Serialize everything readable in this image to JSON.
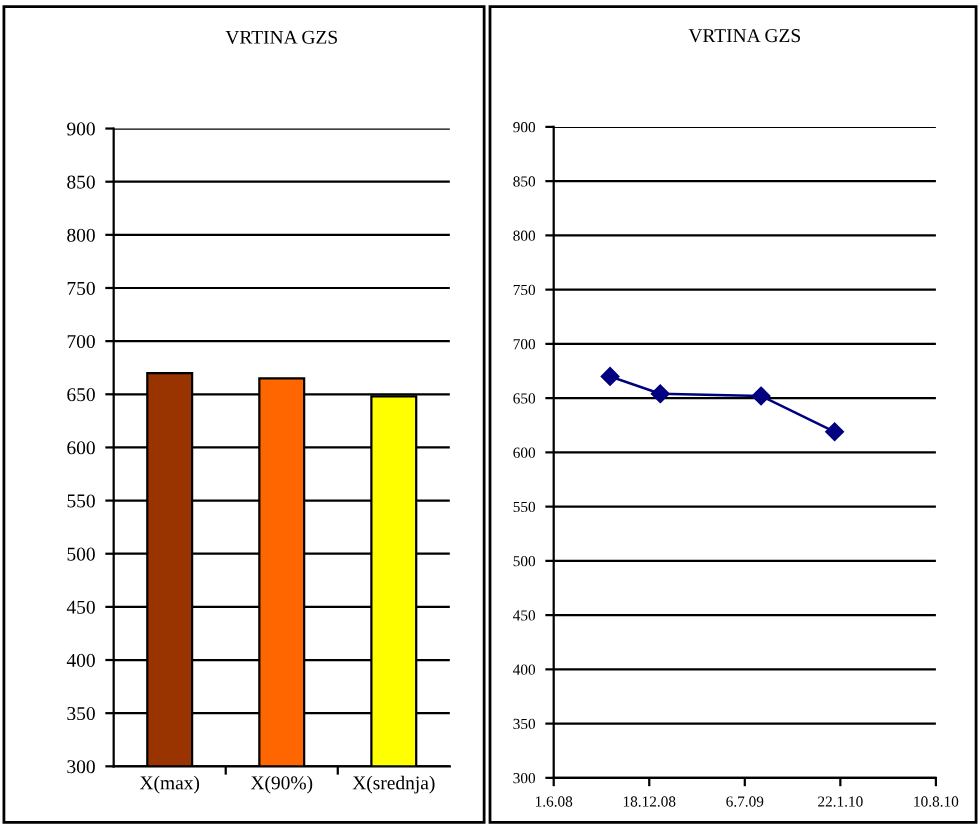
{
  "chart_data": [
    {
      "type": "bar",
      "title": "VRTINA GZS",
      "categories": [
        "X(max)",
        "X(90%)",
        "X(srednja)"
      ],
      "values": [
        670,
        665,
        648
      ],
      "colors": [
        "#993300",
        "#ff6600",
        "#ffff00"
      ],
      "ylim": [
        300,
        900
      ],
      "yticks": [
        300,
        350,
        400,
        450,
        500,
        550,
        600,
        650,
        700,
        750,
        800,
        850,
        900
      ],
      "grid": "y"
    },
    {
      "type": "line",
      "title": "VRTINA GZS",
      "x": [
        "2008-09-27",
        "2009-01-10",
        "2009-08-09",
        "2010-01-10"
      ],
      "values": [
        670,
        654,
        652,
        619
      ],
      "color": "#000080",
      "marker": "diamond",
      "line_style": "solid",
      "xlim": [
        "2008-06-01",
        "2010-08-10"
      ],
      "xticks": [
        {
          "value": "2008-06-01",
          "label": "1.6.08"
        },
        {
          "value": "2008-12-18",
          "label": "18.12.08"
        },
        {
          "value": "2009-07-06",
          "label": "6.7.09"
        },
        {
          "value": "2010-01-22",
          "label": "22.1.10"
        },
        {
          "value": "2010-08-10",
          "label": "10.8.10"
        }
      ],
      "ylim": [
        300,
        900
      ],
      "yticks": [
        300,
        350,
        400,
        450,
        500,
        550,
        600,
        650,
        700,
        750,
        800,
        850,
        900
      ],
      "grid": "y"
    }
  ]
}
